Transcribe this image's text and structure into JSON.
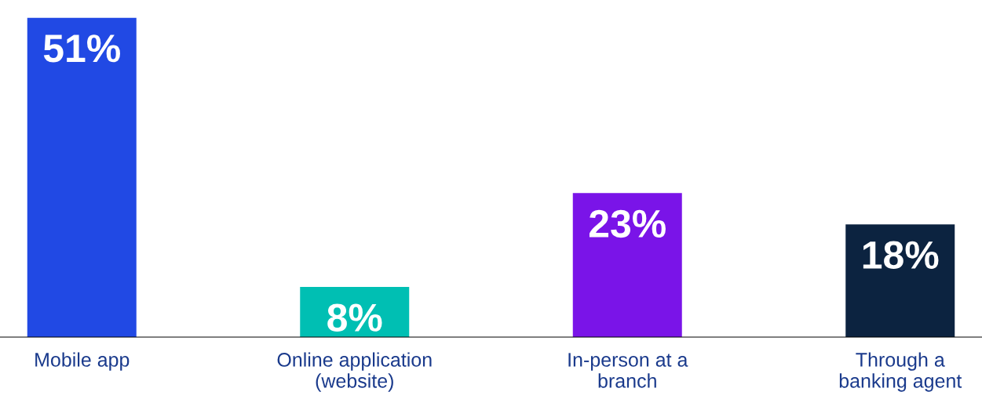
{
  "chart_data": {
    "type": "bar",
    "categories": [
      "Mobile app",
      "Online application\n(website)",
      "In-person at a\nbranch",
      "Through a\nbanking agent"
    ],
    "values": [
      51,
      8,
      23,
      18
    ],
    "value_labels": [
      "51%",
      "8%",
      "23%",
      "18%"
    ],
    "colors": [
      "#2149e4",
      "#00bfb3",
      "#7a14e8",
      "#0c2340"
    ],
    "grid": false,
    "legend": false
  }
}
